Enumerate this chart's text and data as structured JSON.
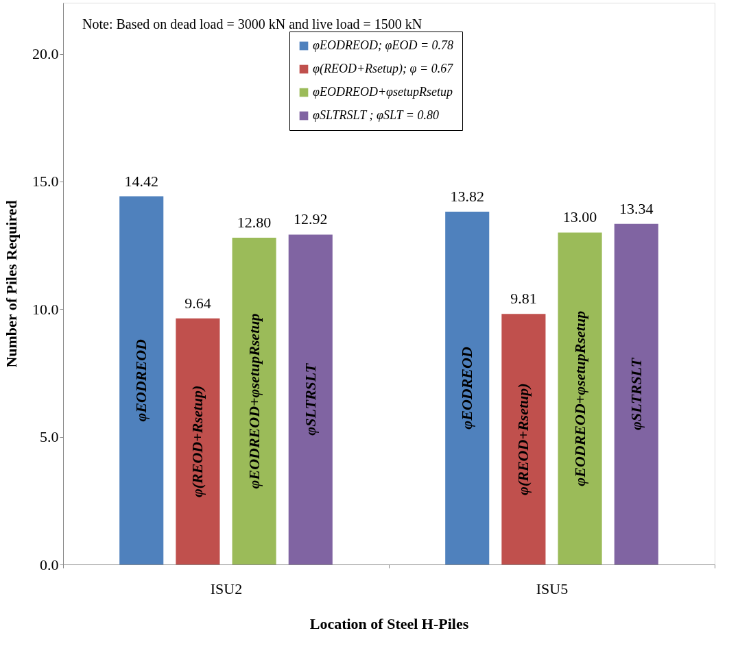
{
  "chart_data": {
    "type": "bar",
    "xlabel": "Location of Steel H-Piles",
    "ylabel": "Number of Piles Required",
    "categories": [
      "ISU2",
      "ISU5"
    ],
    "series": [
      {
        "name": "φEODREOD; φEOD = 0.78",
        "color": "#4f81bd",
        "values": [
          14.42,
          13.82
        ],
        "value_labels": [
          "14.42",
          "13.82"
        ]
      },
      {
        "name": "φ(REOD+Rsetup); φ = 0.67",
        "color": "#c0504d",
        "values": [
          9.64,
          9.81
        ],
        "value_labels": [
          "9.64",
          "9.81"
        ]
      },
      {
        "name": "φEODREOD+φsetupRsetup",
        "color": "#9bbb59",
        "values": [
          12.8,
          13.0
        ],
        "value_labels": [
          "12.80",
          "13.00"
        ]
      },
      {
        "name": "φSLTRSLT ; φSLT = 0.80",
        "color": "#8064a2",
        "values": [
          12.92,
          13.34
        ],
        "value_labels": [
          "12.92",
          "13.34"
        ]
      }
    ],
    "ylim": [
      0,
      22
    ],
    "yticks": [
      {
        "value": 0,
        "label": "0.0"
      },
      {
        "value": 5,
        "label": "5.0"
      },
      {
        "value": 10,
        "label": "10.0"
      },
      {
        "value": 15,
        "label": "15.0"
      },
      {
        "value": 20,
        "label": "20.0"
      }
    ],
    "legend": "top",
    "grid": false,
    "annotations": [
      "Note: Based on dead load = 3000 kN and live load = 1500 kN",
      "φEODREOD",
      "φ(REOD+Rsetup)",
      "φEODREOD+φsetupRsetup",
      "φSLTRSLT",
      "φEODREOD",
      "φ(REOD+Rsetup)",
      "φEODREOD+φsetupRsetup",
      "φSLTRSLT"
    ]
  }
}
